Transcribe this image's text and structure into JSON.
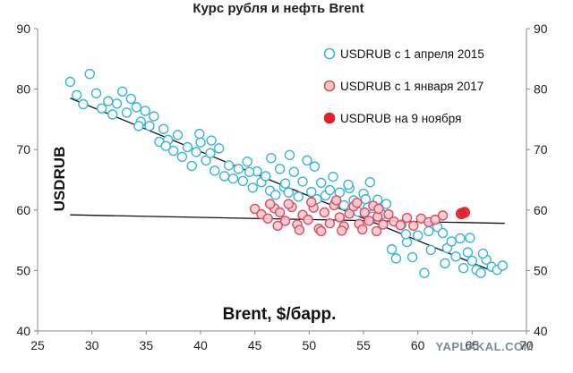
{
  "chart_data": {
    "type": "scatter",
    "title": "Курс рубля и нефть Brent",
    "xlabel": "Brent, $/барр.",
    "ylabel": "USDRUB",
    "xlim": [
      25,
      70
    ],
    "ylim": [
      40,
      90
    ],
    "x_ticks": [
      25,
      30,
      35,
      40,
      45,
      50,
      55,
      60,
      65,
      70
    ],
    "y_ticks": [
      40,
      50,
      60,
      70,
      80,
      90
    ],
    "y_axis_right_mirrored": true,
    "grid": false,
    "legend_position": "top-right",
    "series": [
      {
        "name": "USDRUB с 1 апреля 2015",
        "color": "#3bb5d6",
        "fill": "#ffffff",
        "marker": "hollow-circle",
        "points": [
          [
            28.0,
            81.2
          ],
          [
            28.6,
            79.0
          ],
          [
            29.2,
            77.5
          ],
          [
            29.8,
            82.5
          ],
          [
            30.4,
            79.3
          ],
          [
            30.9,
            76.8
          ],
          [
            31.5,
            78.0
          ],
          [
            31.9,
            75.8
          ],
          [
            32.3,
            77.6
          ],
          [
            32.8,
            79.6
          ],
          [
            33.2,
            76.1
          ],
          [
            33.6,
            78.4
          ],
          [
            34.1,
            77.0
          ],
          [
            34.5,
            74.6
          ],
          [
            34.9,
            76.4
          ],
          [
            35.3,
            73.9
          ],
          [
            35.7,
            75.5
          ],
          [
            36.2,
            71.3
          ],
          [
            36.6,
            73.4
          ],
          [
            37.0,
            71.6
          ],
          [
            37.5,
            69.8
          ],
          [
            37.9,
            72.4
          ],
          [
            38.3,
            68.8
          ],
          [
            38.8,
            70.4
          ],
          [
            39.2,
            67.3
          ],
          [
            39.6,
            69.6
          ],
          [
            40.0,
            71.2
          ],
          [
            40.5,
            68.2
          ],
          [
            40.9,
            69.4
          ],
          [
            41.3,
            66.5
          ],
          [
            41.7,
            70.2
          ],
          [
            42.2,
            65.6
          ],
          [
            42.6,
            67.4
          ],
          [
            43.0,
            65.2
          ],
          [
            43.5,
            66.8
          ],
          [
            43.9,
            64.8
          ],
          [
            44.3,
            68.0
          ],
          [
            44.8,
            63.7
          ],
          [
            45.2,
            66.4
          ],
          [
            45.6,
            64.6
          ],
          [
            46.0,
            65.6
          ],
          [
            46.4,
            63.2
          ],
          [
            46.9,
            62.5
          ],
          [
            47.3,
            66.8
          ],
          [
            47.7,
            63.8
          ],
          [
            48.1,
            62.9
          ],
          [
            48.6,
            66.3
          ],
          [
            49.0,
            62.2
          ],
          [
            49.4,
            64.7
          ],
          [
            49.8,
            68.2
          ],
          [
            50.2,
            63.0
          ],
          [
            50.7,
            61.8
          ],
          [
            51.1,
            64.5
          ],
          [
            51.5,
            62.4
          ],
          [
            51.9,
            63.3
          ],
          [
            52.4,
            61.2
          ],
          [
            52.8,
            62.9
          ],
          [
            53.2,
            60.8
          ],
          [
            53.7,
            63.6
          ],
          [
            54.1,
            61.6
          ],
          [
            54.5,
            59.7
          ],
          [
            55.0,
            62.7
          ],
          [
            55.4,
            60.5
          ],
          [
            55.8,
            58.9
          ],
          [
            56.3,
            61.7
          ],
          [
            56.7,
            59.3
          ],
          [
            57.1,
            61.0
          ],
          [
            57.6,
            53.5
          ],
          [
            58.0,
            52.0
          ],
          [
            58.5,
            57.6
          ],
          [
            59.0,
            54.7
          ],
          [
            59.5,
            52.2
          ],
          [
            60.0,
            55.8
          ],
          [
            60.6,
            49.6
          ],
          [
            61.2,
            53.4
          ],
          [
            61.8,
            57.2
          ],
          [
            62.3,
            56.2
          ],
          [
            62.7,
            53.7
          ],
          [
            63.1,
            54.8
          ],
          [
            63.5,
            52.3
          ],
          [
            63.9,
            55.3
          ],
          [
            64.2,
            50.4
          ],
          [
            64.6,
            53.0
          ],
          [
            65.0,
            51.6
          ],
          [
            65.4,
            50.1
          ],
          [
            65.8,
            49.6
          ],
          [
            66.3,
            51.8
          ],
          [
            66.8,
            50.6
          ],
          [
            67.3,
            50.1
          ],
          [
            67.8,
            50.8
          ],
          [
            44.5,
            66.3
          ],
          [
            46.5,
            68.6
          ],
          [
            48.2,
            69.1
          ],
          [
            50.5,
            67.2
          ],
          [
            52.2,
            65.5
          ],
          [
            53.6,
            64.2
          ],
          [
            55.6,
            64.6
          ],
          [
            41.0,
            71.5
          ],
          [
            36.8,
            70.6
          ],
          [
            39.9,
            72.6
          ],
          [
            34.3,
            73.9
          ],
          [
            47.8,
            64.4
          ],
          [
            55.2,
            61.8
          ],
          [
            58.9,
            56.0
          ],
          [
            61.0,
            56.5
          ],
          [
            62.5,
            51.2
          ],
          [
            64.8,
            55.4
          ],
          [
            66.0,
            52.8
          ]
        ]
      },
      {
        "name": "USDRUB с 1 января 2017",
        "color": "#d94e64",
        "fill": "#f7c9d0",
        "marker": "filled-circle",
        "points": [
          [
            45.0,
            60.2
          ],
          [
            45.6,
            59.3
          ],
          [
            46.2,
            58.6
          ],
          [
            46.8,
            60.3
          ],
          [
            47.3,
            59.6
          ],
          [
            47.8,
            58.2
          ],
          [
            48.4,
            60.5
          ],
          [
            48.9,
            57.6
          ],
          [
            49.4,
            59.2
          ],
          [
            49.9,
            58.4
          ],
          [
            50.4,
            60.4
          ],
          [
            50.9,
            56.9
          ],
          [
            51.4,
            59.6
          ],
          [
            51.9,
            57.8
          ],
          [
            52.3,
            60.8
          ],
          [
            52.8,
            58.8
          ],
          [
            53.2,
            57.3
          ],
          [
            53.7,
            59.4
          ],
          [
            54.1,
            60.6
          ],
          [
            54.6,
            57.7
          ],
          [
            55.1,
            59.6
          ],
          [
            55.5,
            58.2
          ],
          [
            55.9,
            60.7
          ],
          [
            56.3,
            58.9
          ],
          [
            56.8,
            57.6
          ],
          [
            57.3,
            59.3
          ],
          [
            57.8,
            58.1
          ],
          [
            58.4,
            57.5
          ],
          [
            59.0,
            58.7
          ],
          [
            59.6,
            57.4
          ],
          [
            60.3,
            58.6
          ],
          [
            61.0,
            58.0
          ],
          [
            61.6,
            58.4
          ],
          [
            62.3,
            59.1
          ],
          [
            47.1,
            57.4
          ],
          [
            49.1,
            56.7
          ],
          [
            51.1,
            56.5
          ],
          [
            53.0,
            56.6
          ],
          [
            54.9,
            56.8
          ],
          [
            56.2,
            56.5
          ],
          [
            50.2,
            61.3
          ],
          [
            52.5,
            61.6
          ],
          [
            54.4,
            61.2
          ],
          [
            56.4,
            60.2
          ],
          [
            48.1,
            61.0
          ],
          [
            46.4,
            61.0
          ]
        ]
      },
      {
        "name": "USDRUB на 9 ноября",
        "color": "#e0222f",
        "fill": "#e0222f",
        "marker": "filled-circle",
        "points": [
          [
            64.0,
            59.4
          ],
          [
            64.3,
            59.6
          ]
        ]
      }
    ],
    "trendlines": [
      {
        "from": [
          28,
          78.5
        ],
        "to": [
          67,
          49.8
        ],
        "color": "#111111"
      },
      {
        "from": [
          28,
          59.2
        ],
        "to": [
          68,
          57.8
        ],
        "color": "#111111"
      }
    ]
  },
  "watermark": "YAPLAKAL.COM"
}
